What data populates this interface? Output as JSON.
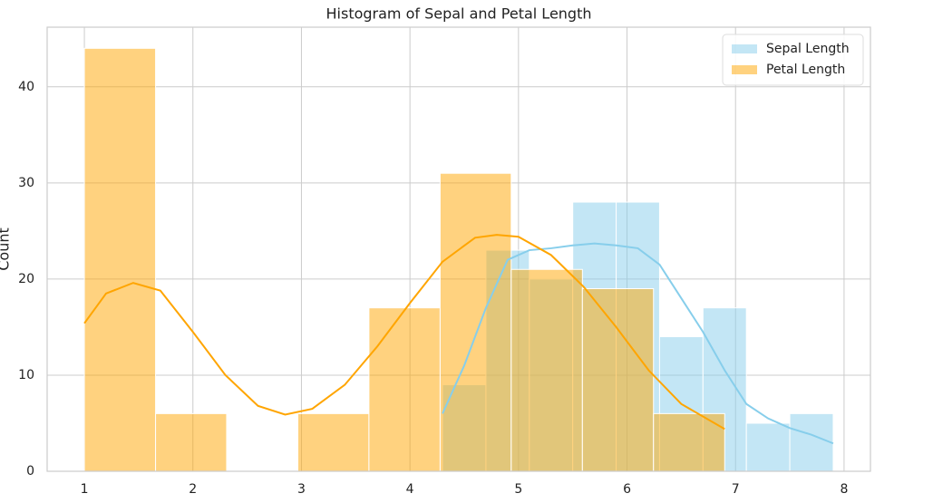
{
  "chart_data": {
    "type": "histogram",
    "title": "Histogram of Sepal and Petal Length",
    "ylabel": "Count",
    "xlim": [
      0.657,
      8.243
    ],
    "ylim": [
      0,
      46.2
    ],
    "xticks": [
      1,
      2,
      3,
      4,
      5,
      6,
      7,
      8
    ],
    "yticks": [
      0,
      10,
      20,
      30,
      40
    ],
    "grid": true,
    "legend": "upper right",
    "series": [
      {
        "name": "Sepal Length",
        "color": "#87ceeb",
        "opacity": 0.5,
        "bins": [
          4.3,
          4.7,
          5.1,
          5.5,
          5.9,
          6.3,
          6.7,
          7.1,
          7.5,
          7.9
        ],
        "values": [
          9,
          23,
          20,
          28,
          28,
          14,
          17,
          5,
          6
        ],
        "kde": {
          "x": [
            4.3,
            4.5,
            4.7,
            4.9,
            5.1,
            5.3,
            5.5,
            5.7,
            5.9,
            6.1,
            6.3,
            6.5,
            6.7,
            6.9,
            7.1,
            7.3,
            7.5,
            7.7,
            7.9
          ],
          "values": [
            6,
            11,
            17,
            22,
            23,
            23.2,
            23.5,
            23.7,
            23.5,
            23.2,
            21.5,
            18,
            14.5,
            10.5,
            7,
            5.5,
            4.5,
            3.8,
            2.9
          ]
        }
      },
      {
        "name": "Petal Length",
        "color": "#ffa500",
        "opacity": 0.5,
        "bins": [
          1,
          1.656,
          2.311,
          2.967,
          3.622,
          4.278,
          4.933,
          5.589,
          6.244,
          6.9
        ],
        "values": [
          44,
          6,
          0,
          6,
          17,
          31,
          21,
          19,
          6
        ],
        "kde": {
          "x": [
            1,
            1.2,
            1.45,
            1.7,
            2.0,
            2.3,
            2.6,
            2.85,
            3.1,
            3.4,
            3.7,
            4.0,
            4.3,
            4.6,
            4.8,
            5.0,
            5.3,
            5.6,
            5.9,
            6.2,
            6.5,
            6.9
          ],
          "values": [
            15.4,
            18.5,
            19.6,
            18.8,
            14.5,
            10,
            6.8,
            5.9,
            6.5,
            9,
            13,
            17.5,
            21.8,
            24.3,
            24.6,
            24.4,
            22.5,
            19.2,
            15,
            10.5,
            7,
            4.4
          ]
        }
      }
    ]
  }
}
